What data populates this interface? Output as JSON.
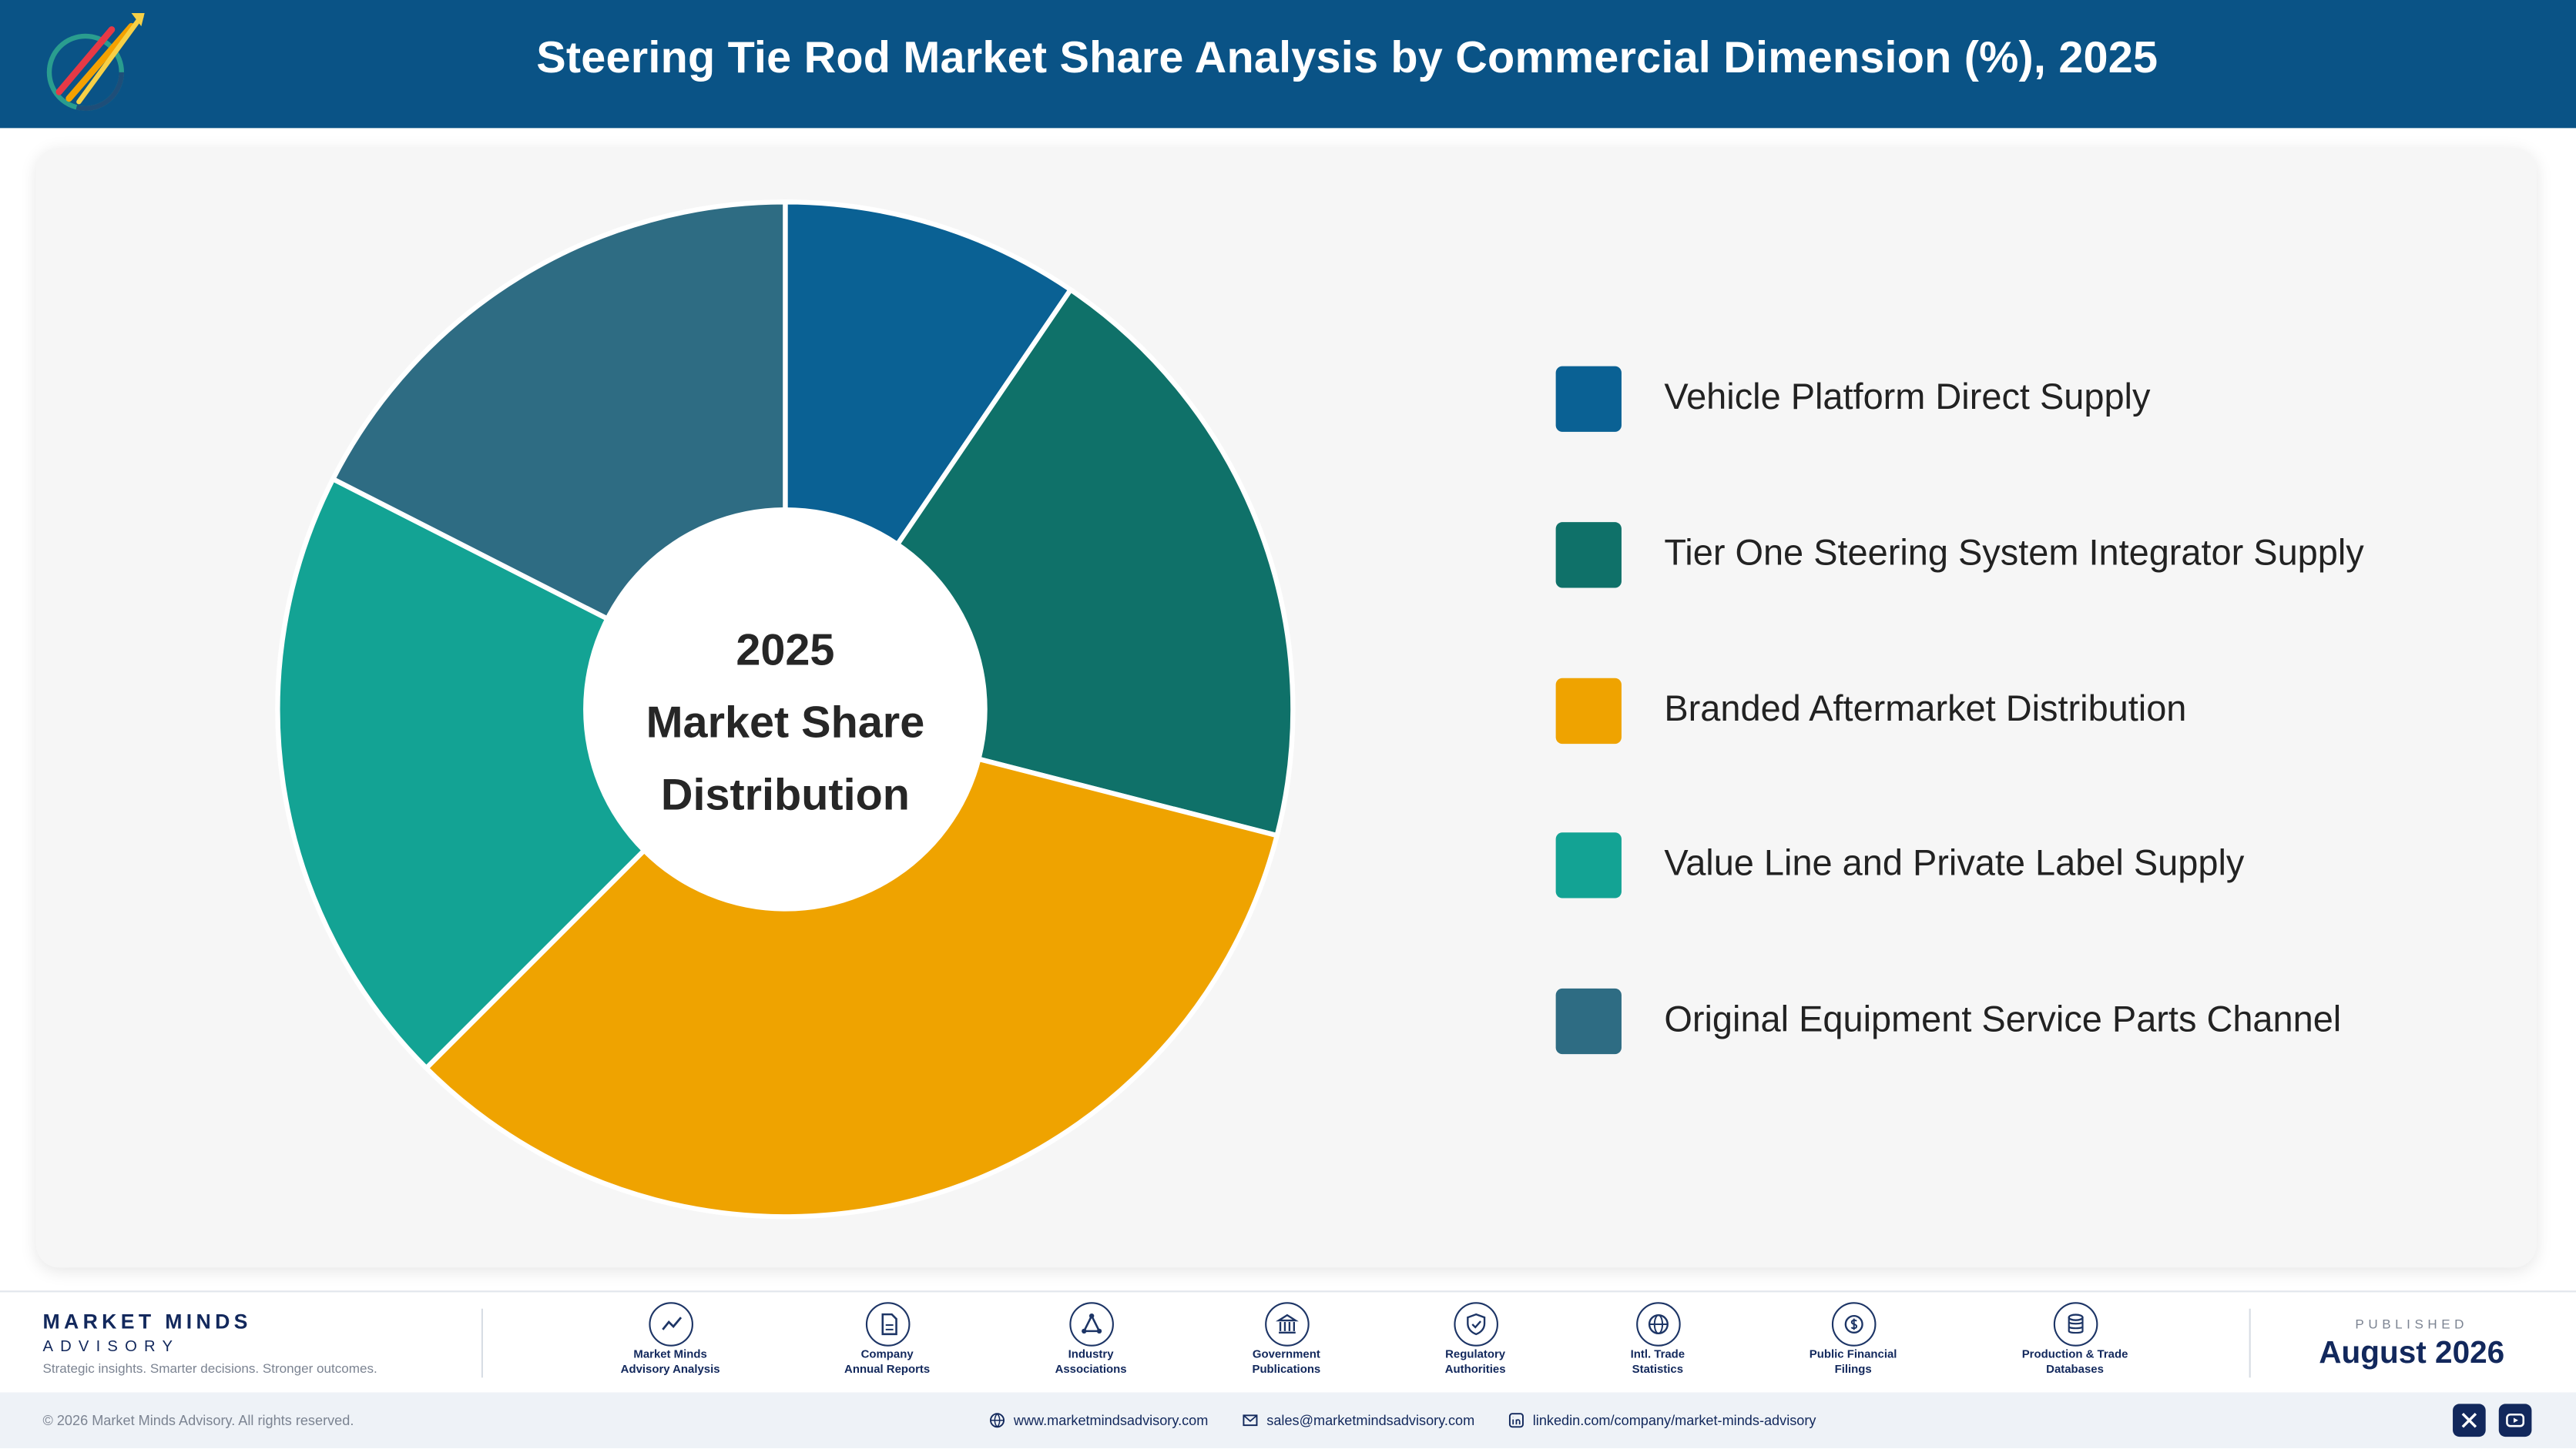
{
  "header": {
    "title": "Steering Tie Rod Market Share Analysis by Commercial Dimension (%), 2025",
    "logo_text": "Market Minds Advisory"
  },
  "chart_data": {
    "type": "pie",
    "variant": "donut",
    "center_label": [
      "2025",
      "Market Share",
      "Distribution"
    ],
    "categories": [
      "Vehicle Platform Direct Supply",
      "Tier One Steering System Integrator Supply",
      "Branded Aftermarket Distribution",
      "Value Line and Private Label Supply",
      "Original Equipment Service Parts Channel"
    ],
    "values": [
      9.5,
      19.5,
      33.5,
      20,
      17.5
    ],
    "colors": [
      "#0a6194",
      "#0f7169",
      "#efa300",
      "#13a394",
      "#2e6c83"
    ],
    "legend_position": "right"
  },
  "footer": {
    "brand_name": "MARKET MINDS",
    "brand_sub": "ADVISORY",
    "tagline": "Strategic insights. Smarter decisions. Stronger outcomes.",
    "sources": [
      {
        "label": "Market Minds\nAdvisory Analysis",
        "icon": "chart-line-icon"
      },
      {
        "label": "Company\nAnnual Reports",
        "icon": "document-icon"
      },
      {
        "label": "Industry\nAssociations",
        "icon": "network-icon"
      },
      {
        "label": "Government\nPublications",
        "icon": "government-building-icon"
      },
      {
        "label": "Regulatory\nAuthorities",
        "icon": "shield-check-icon"
      },
      {
        "label": "Intl. Trade\nStatistics",
        "icon": "globe-icon"
      },
      {
        "label": "Public Financial\nFilings",
        "icon": "dollar-circle-icon"
      },
      {
        "label": "Production & Trade\nDatabases",
        "icon": "database-icon"
      }
    ],
    "published_label": "PUBLISHED",
    "published_date": "August 2026",
    "copyright": "© 2026 Market Minds Advisory. All rights reserved.",
    "website": "www.marketmindsadvisory.com",
    "email": "sales@marketmindsadvisory.com",
    "linkedin": "linkedin.com/company/market-minds-advisory"
  }
}
